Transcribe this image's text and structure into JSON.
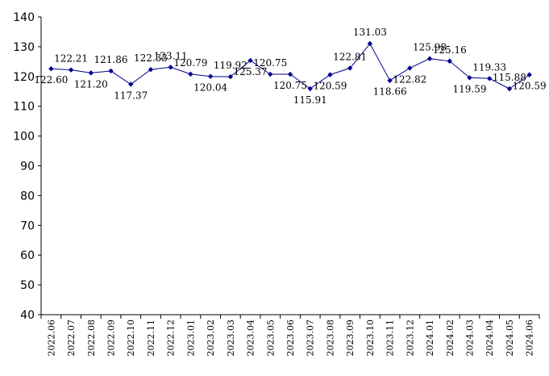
{
  "chart_data": {
    "type": "line",
    "title": "",
    "xlabel": "",
    "ylabel": "",
    "ylim": [
      40,
      140
    ],
    "yticks": [
      40,
      50,
      60,
      70,
      80,
      90,
      100,
      110,
      120,
      130,
      140
    ],
    "grid": false,
    "legend": "none",
    "line_color": "#00008B",
    "categories": [
      "2022.06",
      "2022.07",
      "2022.08",
      "2022.09",
      "2022.10",
      "2022.11",
      "2022.12",
      "2023.01",
      "2023.02",
      "2023.03",
      "2023.04",
      "2023.05",
      "2023.06",
      "2023.07",
      "2023.08",
      "2023.09",
      "2023.10",
      "2023.11",
      "2023.12",
      "2024.01",
      "2024.02",
      "2024.03",
      "2024.04",
      "2024.05",
      "2024.06"
    ],
    "values": [
      122.6,
      122.21,
      121.2,
      121.86,
      117.37,
      122.33,
      123.11,
      120.79,
      120.04,
      119.92,
      125.37,
      120.75,
      120.75,
      115.91,
      120.59,
      122.81,
      131.03,
      118.66,
      122.82,
      125.98,
      125.16,
      119.59,
      119.33,
      115.88,
      120.59
    ]
  }
}
